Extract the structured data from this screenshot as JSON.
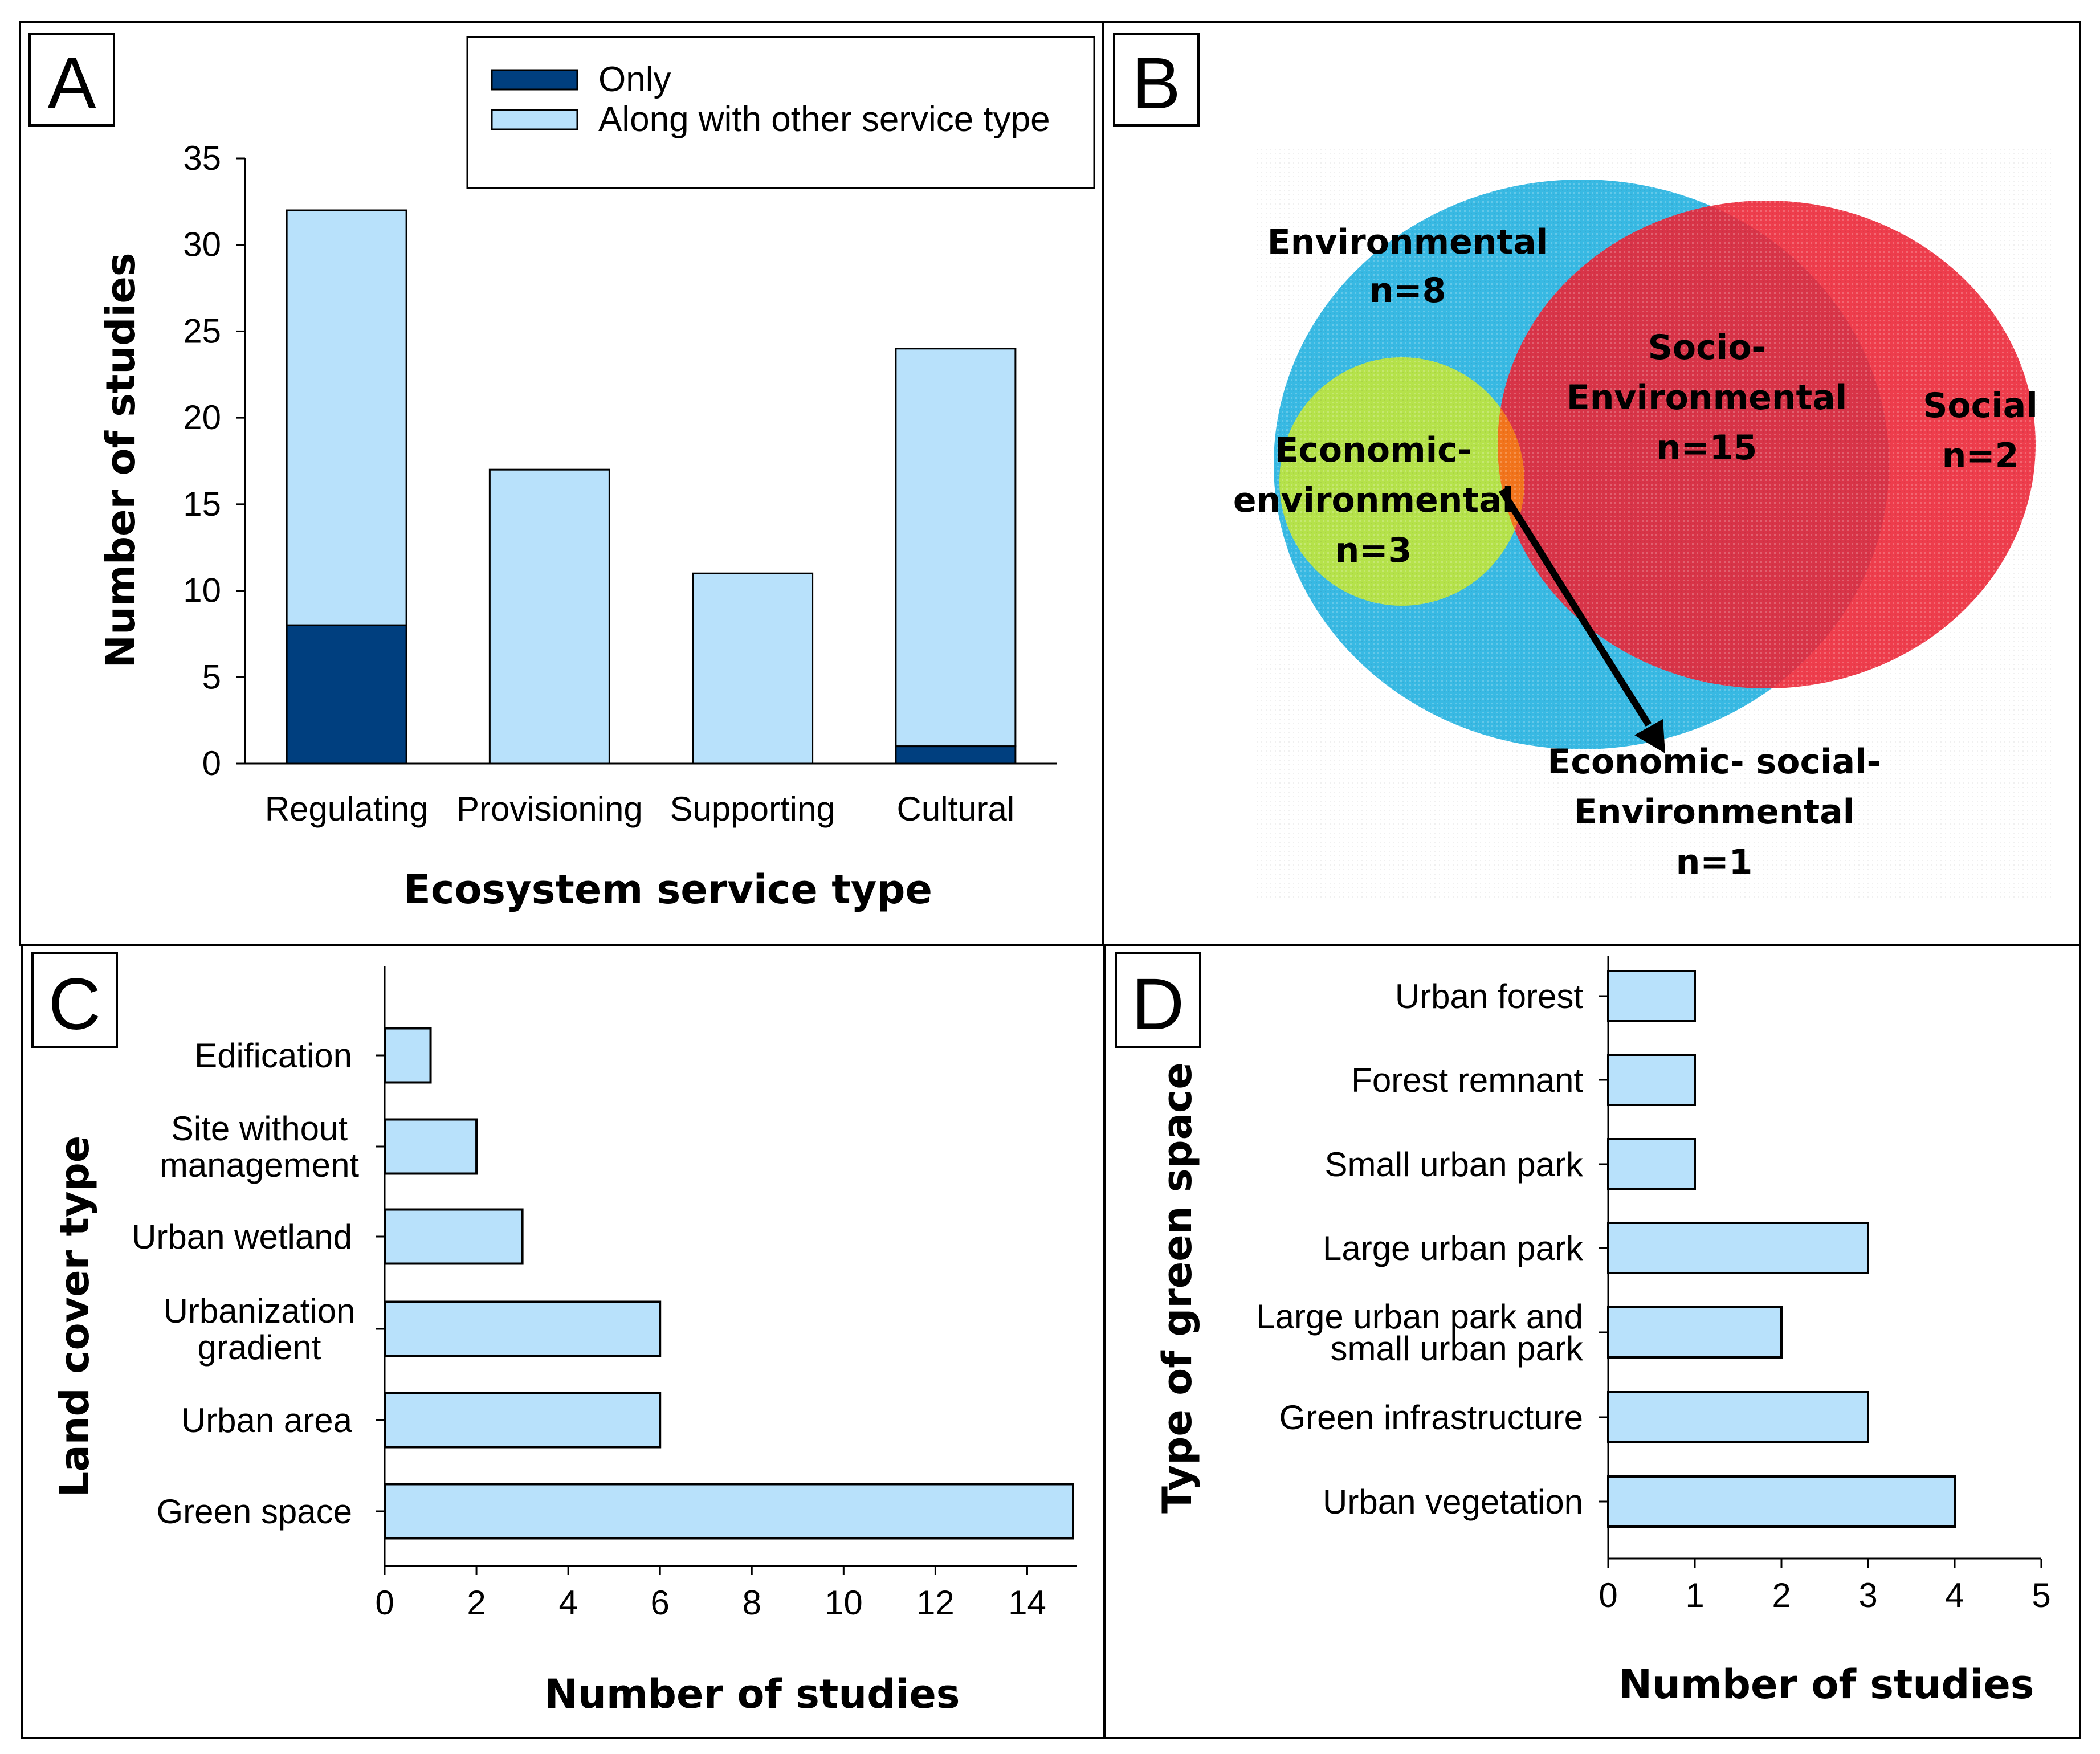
{
  "colors": {
    "only": "#003f7f",
    "along": "#b8e1fb",
    "bar_fill": "#b8e1fb",
    "outline": "#000000",
    "env": "#38b9e3",
    "social": "#ee3d4c",
    "econ": "#b5e24a",
    "overlap": "#f2741c"
  },
  "panels": {
    "a": {
      "letter": "A"
    },
    "b": {
      "letter": "B"
    },
    "c": {
      "letter": "C"
    },
    "d": {
      "letter": "D"
    }
  },
  "chart_data": [
    {
      "panel": "A",
      "type": "bar",
      "stacked": true,
      "categories": [
        "Regulating",
        "Provisioning",
        "Supporting",
        "Cultural"
      ],
      "series": [
        {
          "name": "Only",
          "values": [
            8,
            0,
            0,
            1
          ]
        },
        {
          "name": "Along with other service type",
          "values": [
            24,
            17,
            11,
            23
          ]
        }
      ],
      "xlabel": "Ecosystem service type",
      "ylabel": "Number of studies",
      "ylim": [
        0,
        35
      ],
      "yticks": [
        0,
        5,
        10,
        15,
        20,
        25,
        30,
        35
      ],
      "legend_position": "top-right"
    },
    {
      "panel": "B",
      "type": "venn",
      "sets": [
        {
          "name": "Environmental",
          "label": "Environmental",
          "count_label": "n=8",
          "n": 8
        },
        {
          "name": "Social",
          "label": "Social",
          "count_label": "n=2",
          "n": 2
        },
        {
          "name": "Economic-environmental",
          "label_lines": [
            "Economic-",
            "environmental"
          ],
          "count_label": "n=3",
          "n": 3
        },
        {
          "name": "Socio-Environmental",
          "label_lines": [
            "Socio-",
            "Environmental"
          ],
          "count_label": "n=15",
          "n": 15
        },
        {
          "name": "Economic-social-Environmental",
          "label_lines": [
            "Economic- social-",
            "Environmental"
          ],
          "count_label": "n=1",
          "n": 1
        }
      ]
    },
    {
      "panel": "C",
      "type": "bar",
      "orientation": "horizontal",
      "categories": [
        "Edification",
        "Site without management",
        "Urban wetland",
        "Urbanization gradient",
        "Urban area",
        "Green space"
      ],
      "category_lines": [
        [
          "Edification"
        ],
        [
          "Site without",
          "management"
        ],
        [
          "Urban wetland"
        ],
        [
          "Urbanization",
          "gradient"
        ],
        [
          "Urban area"
        ],
        [
          "Green space"
        ]
      ],
      "values": [
        1,
        2,
        3,
        6,
        6,
        15
      ],
      "xlabel": "Number of studies",
      "ylabel": "Land cover type",
      "xlim": [
        0,
        15
      ],
      "xticks": [
        0,
        2,
        4,
        6,
        8,
        10,
        12,
        14
      ]
    },
    {
      "panel": "D",
      "type": "bar",
      "orientation": "horizontal",
      "categories": [
        "Urban forest",
        "Forest remnant",
        "Small urban park",
        "Large urban park",
        "Large urban park and small urban park",
        "Green infrastructure",
        "Urban vegetation"
      ],
      "category_lines": [
        [
          "Urban forest"
        ],
        [
          "Forest remnant"
        ],
        [
          "Small urban park"
        ],
        [
          "Large urban park"
        ],
        [
          "Large urban park and",
          "small urban park"
        ],
        [
          "Green infrastructure"
        ],
        [
          "Urban vegetation"
        ]
      ],
      "values": [
        1,
        1,
        1,
        3,
        2,
        3,
        4
      ],
      "xlabel": "Number of studies",
      "ylabel": "Type of green space",
      "xlim": [
        0,
        5
      ],
      "xticks": [
        0,
        1,
        2,
        3,
        4,
        5
      ]
    }
  ]
}
